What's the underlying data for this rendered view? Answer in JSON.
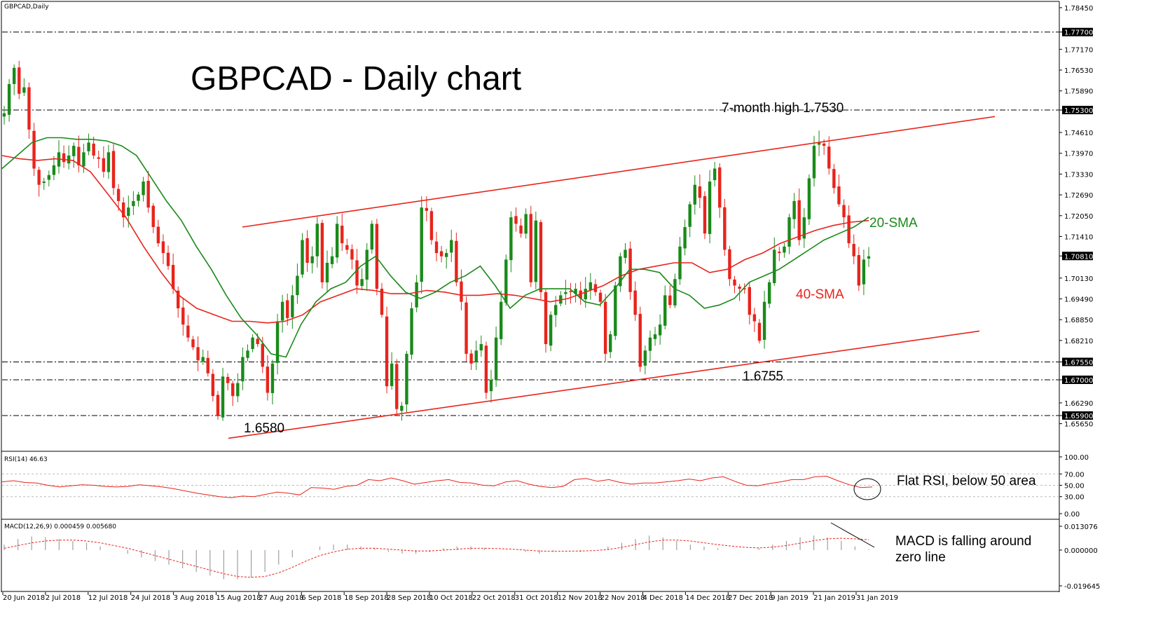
{
  "chart_label": "GBPCAD,Daily",
  "title": "GBPCAD - Daily chart",
  "colors": {
    "bull": "#1a8a1a",
    "bear": "#e8241c",
    "sma20": "#1a8a1a",
    "sma40": "#e8241c",
    "channel": "#e8241c",
    "rsi": "#e8241c",
    "macd_signal": "#e8241c",
    "macd_hist": "#a0a0a0"
  },
  "annotations": {
    "high": "7-month high 1.7530",
    "low1": "1.6580",
    "low2": "1.6755",
    "sma20": "20-SMA",
    "sma40": "40-SMA",
    "rsi_note": "Flat RSI, below 50 area",
    "macd_note_1": "MACD is falling around",
    "macd_note_2": "zero line"
  },
  "chart_data": [
    {
      "type": "candlestick",
      "title": "GBPCAD,Daily",
      "ylim": [
        1.648,
        1.786
      ],
      "y_ticks": [
        "1.78450",
        "1.77700",
        "1.77170",
        "1.76530",
        "1.75890",
        "1.75300",
        "1.74610",
        "1.73970",
        "1.73330",
        "1.72690",
        "1.72050",
        "1.71410",
        "1.70810",
        "1.70130",
        "1.69490",
        "1.68850",
        "1.68210",
        "1.67550",
        "1.67000",
        "1.66290",
        "1.65900",
        "1.65650"
      ],
      "highlight_levels": [
        "1.77700",
        "1.75300",
        "1.70810",
        "1.67550",
        "1.67000",
        "1.65900"
      ],
      "x_tick_labels": [
        "20 Jun 2018",
        "2 Jul 2018",
        "12 Jul 2018",
        "24 Jul 2018",
        "3 Aug 2018",
        "15 Aug 2018",
        "27 Aug 2018",
        "6 Sep 2018",
        "18 Sep 2018",
        "28 Sep 2018",
        "10 Oct 2018",
        "22 Oct 2018",
        "31 Oct 2018",
        "12 Nov 2018",
        "22 Nov 2018",
        "4 Dec 2018",
        "14 Dec 2018",
        "27 Dec 2018",
        "9 Jan 2019",
        "21 Jan 2019",
        "31 Jan 2019"
      ],
      "close": [
        1.752,
        1.761,
        1.766,
        1.758,
        1.76,
        1.747,
        1.735,
        1.73,
        1.731,
        1.733,
        1.736,
        1.74,
        1.737,
        1.739,
        1.742,
        1.736,
        1.74,
        1.743,
        1.739,
        1.738,
        1.734,
        1.74,
        1.729,
        1.725,
        1.72,
        1.723,
        1.725,
        1.727,
        1.731,
        1.723,
        1.717,
        1.712,
        1.709,
        1.705,
        1.698,
        1.692,
        1.687,
        1.683,
        1.68,
        1.676,
        1.677,
        1.672,
        1.665,
        1.659,
        1.671,
        1.669,
        1.665,
        1.669,
        1.677,
        1.679,
        1.683,
        1.681,
        1.674,
        1.666,
        1.675,
        1.688,
        1.694,
        1.689,
        1.696,
        1.702,
        1.713,
        1.706,
        1.708,
        1.718,
        1.7,
        1.706,
        1.708,
        1.718,
        1.712,
        1.71,
        1.707,
        1.699,
        1.701,
        1.71,
        1.718,
        1.698,
        1.69,
        1.668,
        1.675,
        1.661,
        1.662,
        1.678,
        1.692,
        1.7,
        1.723,
        1.722,
        1.713,
        1.709,
        1.708,
        1.709,
        1.713,
        1.7,
        1.694,
        1.678,
        1.675,
        1.679,
        1.681,
        1.666,
        1.67,
        1.683,
        1.694,
        1.707,
        1.72,
        1.718,
        1.715,
        1.721,
        1.7,
        1.719,
        1.697,
        1.681,
        1.69,
        1.693,
        1.696,
        1.697,
        1.697,
        1.698,
        1.695,
        1.698,
        1.7,
        1.697,
        1.694,
        1.678,
        1.684,
        1.699,
        1.708,
        1.71,
        1.697,
        1.69,
        1.674,
        1.679,
        1.683,
        1.684,
        1.687,
        1.696,
        1.693,
        1.701,
        1.711,
        1.717,
        1.724,
        1.73,
        1.726,
        1.715,
        1.731,
        1.735,
        1.723,
        1.71,
        1.701,
        1.699,
        1.698,
        1.698,
        1.69,
        1.688,
        1.682,
        1.694,
        1.7,
        1.71,
        1.709,
        1.711,
        1.72,
        1.725,
        1.713,
        1.72,
        1.732,
        1.742,
        1.743,
        1.742,
        1.735,
        1.729,
        1.724,
        1.72,
        1.712,
        1.708,
        1.699,
        1.707,
        1.708
      ],
      "sma20": [
        1.735,
        1.739,
        1.743,
        1.7445,
        1.7445,
        1.744,
        1.744,
        1.7435,
        1.742,
        1.739,
        1.732,
        1.725,
        1.719,
        1.711,
        1.704,
        1.696,
        1.689,
        1.684,
        1.678,
        1.677,
        1.687,
        1.694,
        1.698,
        1.7,
        1.705,
        1.708,
        1.702,
        1.697,
        1.695,
        1.697,
        1.7,
        1.702,
        1.705,
        1.699,
        1.692,
        1.696,
        1.698,
        1.698,
        1.698,
        1.694,
        1.693,
        1.698,
        1.704,
        1.704,
        1.703,
        1.698,
        1.696,
        1.692,
        1.693,
        1.695,
        1.7,
        1.702,
        1.704,
        1.707,
        1.71,
        1.713,
        1.715,
        1.717,
        1.72
      ],
      "sma40": [
        1.739,
        1.738,
        1.7375,
        1.738,
        1.7375,
        1.734,
        1.727,
        1.72,
        1.711,
        1.703,
        1.696,
        1.692,
        1.69,
        1.688,
        1.688,
        1.6875,
        1.688,
        1.69,
        1.694,
        1.696,
        1.698,
        1.6975,
        1.6965,
        1.6965,
        1.6975,
        1.697,
        1.696,
        1.696,
        1.6965,
        1.696,
        1.695,
        1.694,
        1.695,
        1.697,
        1.699,
        1.702,
        1.704,
        1.705,
        1.706,
        1.706,
        1.703,
        1.704,
        1.707,
        1.709,
        1.712,
        1.714,
        1.716,
        1.7175,
        1.7185,
        1.719
      ],
      "channel_upper": [
        [
          1.717,
          1.751
        ]
      ],
      "channel_lower": [
        [
          1.652,
          1.685
        ]
      ]
    },
    {
      "type": "line",
      "title": "RSI(14) 46.63",
      "ylim": [
        0,
        100
      ],
      "y_ticks": [
        "100.00",
        "70.00",
        "50.00",
        "30.00",
        "0.00"
      ],
      "values": [
        56,
        58,
        55,
        54,
        50,
        47,
        49,
        51,
        50,
        48,
        47,
        48,
        51,
        49,
        47,
        44,
        40,
        36,
        33,
        30,
        28,
        31,
        30,
        34,
        38,
        36,
        33,
        46,
        45,
        43,
        48,
        50,
        60,
        58,
        63,
        58,
        52,
        55,
        58,
        60,
        55,
        54,
        50,
        49,
        56,
        58,
        52,
        48,
        46,
        48,
        60,
        62,
        57,
        60,
        55,
        52,
        54,
        54,
        56,
        58,
        61,
        58,
        63,
        65,
        57,
        50,
        49,
        53,
        56,
        60,
        60,
        65,
        66,
        58,
        51,
        46,
        47
      ]
    },
    {
      "type": "bar",
      "title": "MACD(12,26,9) 0.000459 0.005680",
      "ylim": [
        -0.019645,
        0.013076
      ],
      "y_ticks": [
        "0.013076",
        "0.000000",
        "-0.019645"
      ],
      "values": [
        0.003,
        0.006,
        0.0075,
        0.007,
        0.006,
        0.005,
        0.004,
        0.002,
        0.0,
        -0.002,
        -0.004,
        -0.006,
        -0.008,
        -0.01,
        -0.012,
        -0.014,
        -0.016,
        -0.016,
        -0.015,
        -0.012,
        -0.008,
        -0.004,
        0.0,
        0.002,
        0.003,
        0.003,
        0.002,
        0.001,
        -0.001,
        -0.002,
        -0.002,
        -0.001,
        0.001,
        0.002,
        0.002,
        0.001,
        0.0,
        0.0,
        -0.001,
        -0.002,
        -0.001,
        0.0,
        -0.001,
        0.0,
        0.002,
        0.004,
        0.006,
        0.008,
        0.007,
        0.005,
        0.003,
        0.002,
        0.001,
        0.0,
        0.0,
        0.001,
        0.003,
        0.005,
        0.007,
        0.008,
        0.007,
        0.005,
        0.002,
        0.0005
      ],
      "signal": [
        0.001,
        0.0025,
        0.004,
        0.005,
        0.0055,
        0.0055,
        0.005,
        0.004,
        0.0025,
        0.001,
        -0.001,
        -0.003,
        -0.005,
        -0.007,
        -0.009,
        -0.011,
        -0.013,
        -0.0145,
        -0.015,
        -0.0145,
        -0.0125,
        -0.0095,
        -0.006,
        -0.003,
        -0.001,
        0.0005,
        0.001,
        0.001,
        0.0005,
        0.0,
        -0.0005,
        -0.0005,
        0.0,
        0.0005,
        0.001,
        0.001,
        0.0008,
        0.0005,
        0.0,
        -0.0005,
        -0.0007,
        -0.0006,
        -0.0005,
        -0.0003,
        0.0003,
        0.0015,
        0.003,
        0.0045,
        0.0055,
        0.0055,
        0.005,
        0.004,
        0.003,
        0.0022,
        0.0015,
        0.0012,
        0.0016,
        0.0025,
        0.0038,
        0.0052,
        0.0062,
        0.0065,
        0.0062,
        0.0057
      ]
    }
  ]
}
